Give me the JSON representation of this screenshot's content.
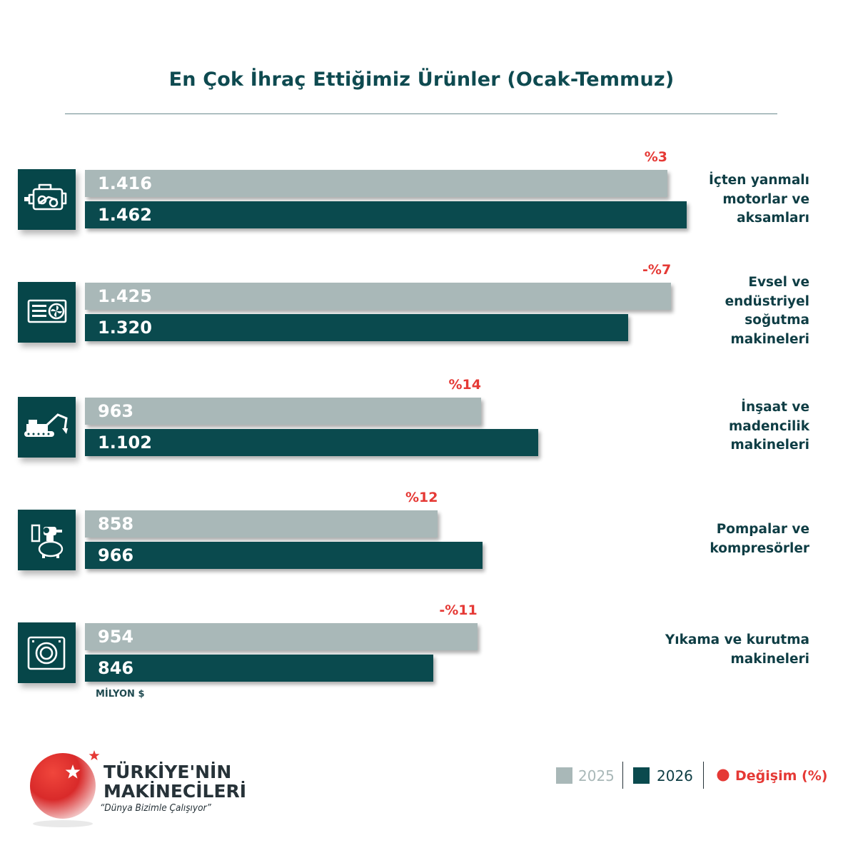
{
  "chart_data": {
    "type": "bar",
    "title": "En Çok İhraç Ettiğimiz Ürünler (Ocak-Temmuz)",
    "unit": "MİLYON $",
    "categories": [
      "İçten yanmalı\nmotorlar ve\naksamları",
      "Evsel ve\nendüstriyel\nsoğutma\nmakineleri",
      "İnşaat ve\nmadencilik\nmakineleri",
      "Pompalar ve\nkompresörler",
      "Yıkama ve kurutma\nmakineleri"
    ],
    "icons": [
      "engine-icon",
      "cooling-unit-icon",
      "excavator-icon",
      "pump-compressor-icon",
      "washing-machine-icon"
    ],
    "series": [
      {
        "name": "2025",
        "color": "#a9b8b8",
        "values": [
          1416,
          1425,
          963,
          858,
          954
        ],
        "labels": [
          "1.416",
          "1.425",
          "963",
          "858",
          "954"
        ]
      },
      {
        "name": "2026",
        "color": "#0a4a4e",
        "values": [
          1462,
          1320,
          1102,
          966,
          846
        ],
        "labels": [
          "1.462",
          "1.320",
          "1.102",
          "966",
          "846"
        ]
      }
    ],
    "change": [
      "%3",
      "-%7",
      "%14",
      "%12",
      "-%11"
    ],
    "change_label": "Değişim (%)",
    "change_color": "#e53935",
    "xlim": [
      0,
      1475
    ],
    "legend_position": "bottom-right",
    "grid": false
  },
  "brand": {
    "name": "TÜRKİYE'NİN\nMAKİNECİLERİ",
    "slogan": "“Dünya Bizimle Çalışıyor”"
  }
}
